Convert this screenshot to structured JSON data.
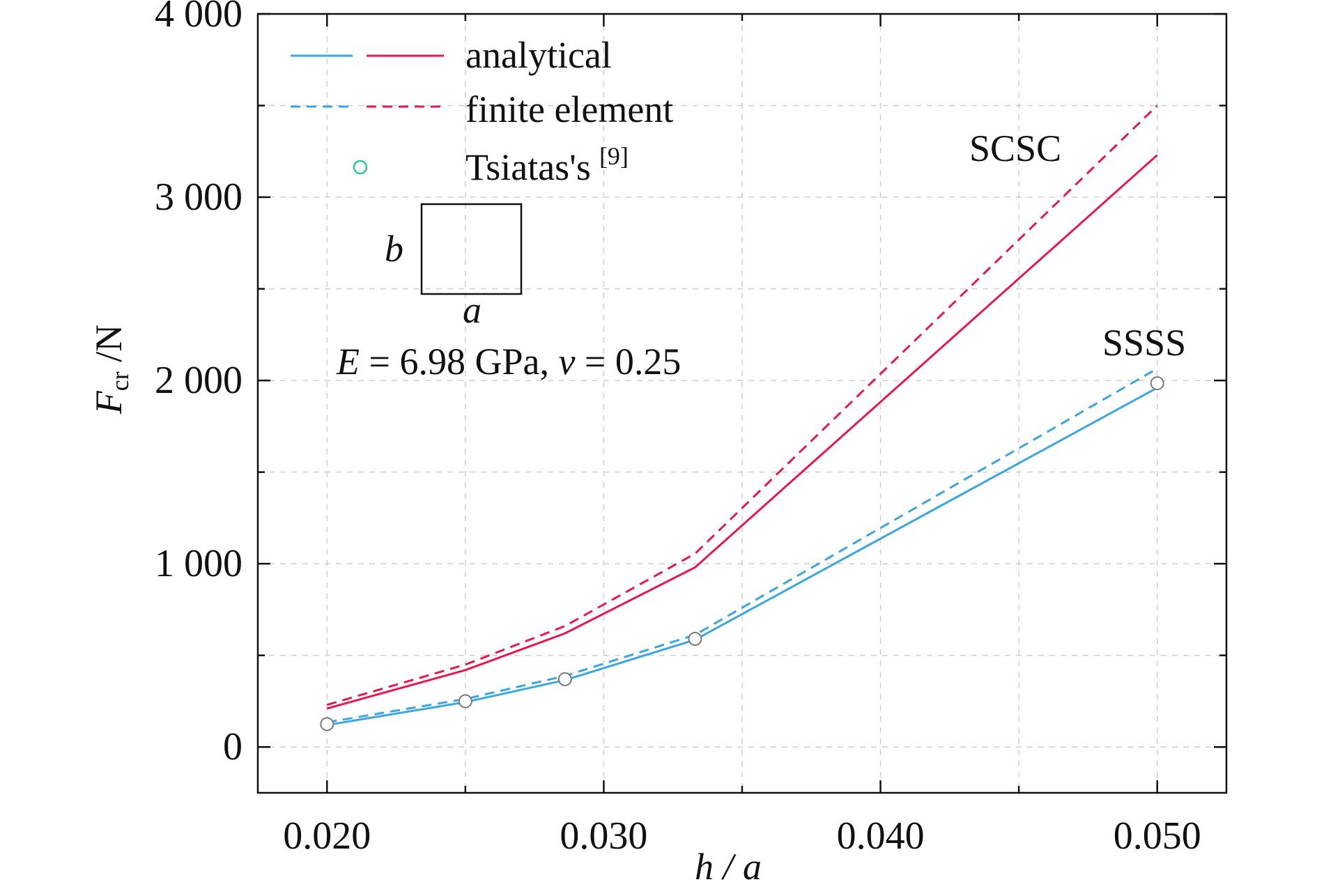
{
  "chart_data": {
    "type": "line",
    "xlabel": {
      "main": "h / a"
    },
    "ylabel": {
      "main": "F",
      "sub": "cr",
      "unit": " /N"
    },
    "xlim": [
      0.0175,
      0.0525
    ],
    "ylim": [
      -250,
      4000
    ],
    "xticks": [
      0.02,
      0.03,
      0.04,
      0.05
    ],
    "xtick_labels": [
      "0.020",
      "0.030",
      "0.040",
      "0.050"
    ],
    "yticks": [
      0,
      1000,
      2000,
      3000,
      4000
    ],
    "ytick_labels": [
      "0",
      "1 000",
      "2 000",
      "3 000",
      "4 000"
    ],
    "grid": true,
    "legend": {
      "position": "top-left",
      "entries": [
        {
          "label": "analytical",
          "style": "solid"
        },
        {
          "label": "finite element",
          "style": "dashed"
        },
        {
          "label": "Tsiatas's",
          "ref": "[9]",
          "style": "marker"
        }
      ]
    },
    "series": [
      {
        "group": "SSSS",
        "method": "analytical",
        "style": "solid",
        "color": "#3aa6e0",
        "x": [
          0.02,
          0.025,
          0.0286,
          0.0333,
          0.05
        ],
        "y": [
          120,
          245,
          365,
          585,
          1960
        ]
      },
      {
        "group": "SSSS",
        "method": "finite element",
        "style": "dashed",
        "color": "#3aa6e0",
        "x": [
          0.02,
          0.025,
          0.0286,
          0.0333,
          0.05
        ],
        "y": [
          135,
          262,
          388,
          612,
          2065
        ]
      },
      {
        "group": "SCSC",
        "method": "analytical",
        "style": "solid",
        "color": "#e8184f",
        "x": [
          0.02,
          0.025,
          0.0286,
          0.0333,
          0.05
        ],
        "y": [
          210,
          420,
          620,
          980,
          3230
        ]
      },
      {
        "group": "SCSC",
        "method": "finite element",
        "style": "dashed",
        "color": "#e8184f",
        "x": [
          0.02,
          0.025,
          0.0286,
          0.0333,
          0.05
        ],
        "y": [
          230,
          450,
          660,
          1055,
          3500
        ]
      },
      {
        "group": "SSSS",
        "method": "Tsiatas's",
        "style": "marker",
        "color": "#2ec4a0",
        "x": [
          0.02,
          0.025,
          0.0286,
          0.0333,
          0.05
        ],
        "y": [
          125,
          250,
          370,
          590,
          1985
        ]
      }
    ],
    "annotations": {
      "scsc_label": "SCSC",
      "ssss_label": "SSSS",
      "inset_b": "b",
      "inset_a": "a",
      "material_E": "E",
      "material_eq1": " = 6.98 GPa, ",
      "material_nu": "ν",
      "material_eq2": " = 0.25"
    }
  }
}
